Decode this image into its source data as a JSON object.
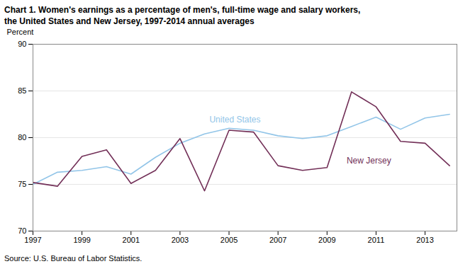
{
  "chart_data": {
    "type": "line",
    "title": "Chart 1. Women's earnings as a percentage of men's, full-time wage and salary workers,",
    "subtitle": "the United States and New Jersey, 1997-2014 annual averages",
    "ylabel": "Percent",
    "caption": "Source:  U.S. Bureau of Labor Statistics.",
    "x": [
      1997,
      1998,
      1999,
      2000,
      2001,
      2002,
      2003,
      2004,
      2005,
      2006,
      2007,
      2008,
      2009,
      2010,
      2011,
      2012,
      2013,
      2014
    ],
    "series": [
      {
        "name": "United States",
        "color": "#92C5E8",
        "values": [
          75.0,
          76.3,
          76.5,
          76.9,
          76.1,
          77.9,
          79.4,
          80.4,
          81.0,
          80.8,
          80.2,
          79.9,
          80.2,
          81.2,
          82.2,
          80.9,
          82.1,
          82.5
        ]
      },
      {
        "name": "New Jersey",
        "color": "#722F57",
        "values": [
          75.2,
          74.8,
          78.0,
          78.7,
          75.1,
          76.5,
          79.9,
          74.3,
          80.8,
          80.6,
          77.0,
          76.5,
          76.8,
          84.9,
          83.3,
          79.6,
          79.4,
          77.0
        ]
      }
    ],
    "annotations": [
      {
        "text": "United States",
        "x": 2004.2,
        "y": 81.6,
        "color": "#92C5E8"
      },
      {
        "text": "New Jersey",
        "x": 2009.8,
        "y": 77.2,
        "color": "#722F57"
      }
    ],
    "xlim": [
      1997,
      2014.3
    ],
    "xticks": [
      1997,
      1999,
      2001,
      2003,
      2005,
      2007,
      2009,
      2011,
      2013
    ],
    "ylim": [
      70,
      90
    ],
    "yticks": [
      70,
      75,
      80,
      85,
      90
    ],
    "grid": true
  }
}
